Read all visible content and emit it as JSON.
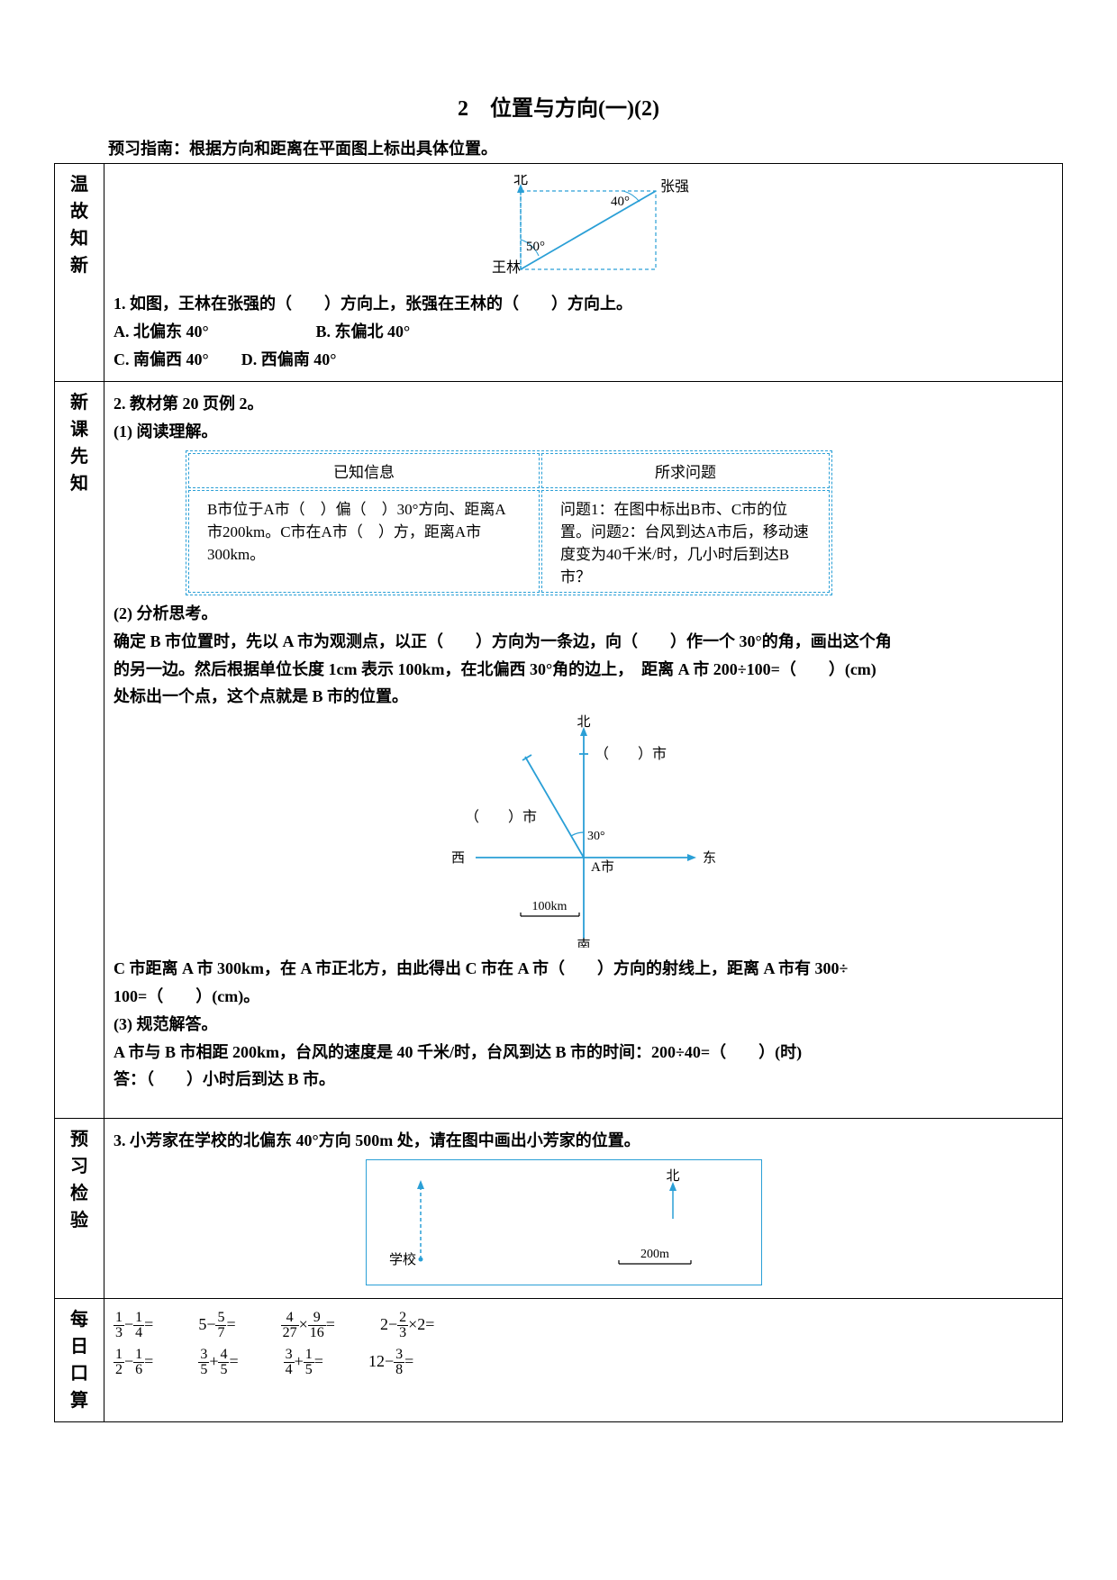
{
  "page": {
    "title": "2　位置与方向(一)(2)",
    "guide": "预习指南：根据方向和距离在平面图上标出具体位置。",
    "colors": {
      "accent": "#2a9fd6",
      "text": "#000000",
      "bg": "#ffffff",
      "border": "#000000"
    }
  },
  "sections": {
    "s1": {
      "label_chars": [
        "温",
        "故",
        "知",
        "新"
      ]
    },
    "s2": {
      "label_chars": [
        "新",
        "课",
        "先",
        "知"
      ]
    },
    "s3": {
      "label_chars": [
        "预",
        "习",
        "检",
        "验"
      ]
    },
    "s4": {
      "label_chars": [
        "每",
        "日",
        "口",
        "算"
      ]
    }
  },
  "q1": {
    "diagram": {
      "north": "北",
      "name_wl": "王林",
      "name_zq": "张强",
      "angle_top": "40°",
      "angle_bottom": "50°",
      "stroke": "#2a9fd6",
      "dash": "4,3"
    },
    "stem": "1. 如图，王林在张强的（　　）方向上，张强在王林的（　　）方向上。",
    "optA": "A. 北偏东 40°",
    "optB": "B. 东偏北 40°",
    "optC": "C. 南偏西 40°　　D. 西偏南 40°"
  },
  "q2": {
    "heading": "2. 教材第 20 页例 2。",
    "p1_title": "(1) 阅读理解。",
    "table": {
      "h_known": "已知信息",
      "h_asked": "所求问题",
      "known": "B市位于A市（　）偏（　）30°方向、距离A市200km。C市在A市（　）方，距离A市300km。",
      "asked": "问题1：在图中标出B市、C市的位置。问题2：台风到达A市后，移动速度变为40千米/时，几小时后到达B市？"
    },
    "p2_title": "(2) 分析思考。",
    "p2_line1": "确定 B 市位置时，先以 A 市为观测点，以正（　　）方向为一条边，向（　　）作一个 30°的角，画出这个角",
    "p2_line2": "的另一边。然后根据单位长度 1cm 表示 100km，在北偏西 30°角的边上，　距离 A 市 200÷100=（　　）(cm)",
    "p2_line3": "处标出一个点，这个点就是 B 市的位置。",
    "diagram": {
      "north": "北",
      "south": "南",
      "east": "东",
      "west": "西",
      "a_label": "A市",
      "b_label": "（　　）市",
      "c_label": "（　　）市",
      "angle": "30°",
      "scale": "100km",
      "stroke": "#2a9fd6"
    },
    "p2_line4": "C 市距离 A 市 300km，在 A 市正北方，由此得出 C 市在 A 市（　　）方向的射线上，距离 A 市有 300÷",
    "p2_line5": "100=（　　）(cm)。",
    "p3_title": "(3) 规范解答。",
    "p3_line1": "A 市与 B 市相距 200km，台风的速度是 40 千米/时，台风到达 B 市的时间：200÷40=（　　）(时)",
    "p3_line2": "答：（　　）小时后到达 B 市。"
  },
  "q3": {
    "stem": "3. 小芳家在学校的北偏东 40°方向 500m 处，请在图中画出小芳家的位置。",
    "diagram": {
      "school": "学校",
      "north": "北",
      "scale": "200m",
      "stroke": "#2a9fd6"
    }
  },
  "oral": {
    "items": [
      {
        "type": "sub",
        "a_n": "1",
        "a_d": "3",
        "b_n": "1",
        "b_d": "4"
      },
      {
        "type": "int_sub",
        "int": "5",
        "b_n": "5",
        "b_d": "7"
      },
      {
        "type": "mul",
        "a_n": "4",
        "a_d": "27",
        "b_n": "9",
        "b_d": "16"
      },
      {
        "type": "int_sub_mul",
        "int": "2",
        "b_n": "2",
        "b_d": "3",
        "mul": "2"
      },
      {
        "type": "sub",
        "a_n": "1",
        "a_d": "2",
        "b_n": "1",
        "b_d": "6"
      },
      {
        "type": "add",
        "a_n": "3",
        "a_d": "5",
        "b_n": "4",
        "b_d": "5"
      },
      {
        "type": "add",
        "a_n": "3",
        "a_d": "4",
        "b_n": "1",
        "b_d": "5"
      },
      {
        "type": "int_sub",
        "int": "12",
        "b_n": "3",
        "b_d": "8"
      }
    ]
  }
}
